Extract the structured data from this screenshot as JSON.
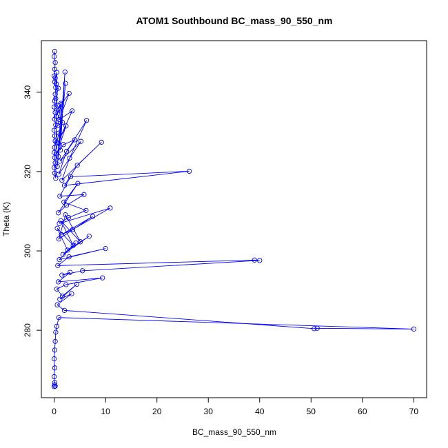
{
  "chart_data": {
    "type": "line",
    "title": "ATOM1 Southbound BC_mass_90_550_nm",
    "xlabel": "BC_mass_90_550_nm",
    "ylabel": "Theta (K)",
    "xlim": [
      -2.5,
      72.5
    ],
    "ylim": [
      263,
      353
    ],
    "xticks": [
      0,
      10,
      20,
      30,
      40,
      50,
      60,
      70
    ],
    "yticks": [
      280,
      300,
      320,
      340
    ],
    "grid": false,
    "legend": "none",
    "marker": "open-circle",
    "color": "#0000ff",
    "series": [
      {
        "x": [
          0.1,
          0.0,
          0.2,
          0.1,
          0.0,
          0.1,
          0.3,
          0.2,
          0.1,
          0.0,
          0.2,
          0.1,
          0.3,
          0.0,
          0.1,
          0.2,
          0.1,
          0.0,
          0.1,
          0.2,
          0.0,
          0.1,
          0.3,
          0.5,
          0.2,
          0.4,
          0.8,
          0.3,
          0.6,
          1.0,
          0.4,
          1.3,
          0.7,
          1.6,
          0.9,
          0.5,
          1.2,
          2.1,
          0.8,
          2.2,
          0.6,
          1.4,
          2.9,
          1.0,
          3.5,
          0.7,
          2.3,
          0.5,
          1.8,
          4.0,
          1.1,
          5.2,
          0.9,
          2.4,
          6.3,
          3.0,
          1.5,
          9.2,
          4.5,
          2.0,
          26.3,
          3.2,
          1.1,
          5.8,
          2.4,
          0.8,
          4.6,
          1.9,
          6.2,
          2.8,
          1.0,
          10.9,
          3.6,
          1.4,
          7.5,
          0.9,
          2.2,
          5.1,
          1.3,
          3.7,
          0.6,
          2.6,
          6.8,
          1.7,
          4.2,
          1.0,
          10.0,
          2.9,
          0.7,
          39.0,
          40.0,
          5.5,
          1.5,
          3.1,
          0.8,
          9.4,
          2.3,
          0.5,
          1.6,
          4.4,
          1.1,
          3.4,
          0.6,
          2.0,
          50.6,
          51.2,
          70.0,
          0.9,
          0.5,
          0.3,
          0.2,
          0.1,
          0.0,
          0.1,
          0.0,
          0.1,
          0.2,
          0.1,
          0.0
        ],
        "y": [
          350.3,
          349.0,
          347.5,
          345.8,
          344.1,
          342.6,
          341.2,
          339.5,
          337.8,
          336.3,
          334.9,
          333.2,
          331.8,
          330.4,
          329.0,
          327.7,
          326.1,
          324.8,
          323.5,
          322.2,
          321.0,
          319.6,
          318.3,
          345.0,
          343.6,
          342.1,
          341.0,
          338.4,
          336.7,
          335.5,
          333.9,
          337.2,
          331.6,
          332.4,
          329.7,
          327.3,
          325.4,
          345.1,
          323.8,
          342.2,
          321.3,
          336.9,
          339.7,
          333.1,
          335.3,
          327.2,
          331.5,
          324.5,
          326.8,
          328.0,
          322.6,
          327.6,
          319.3,
          325.1,
          332.9,
          323.4,
          317.8,
          327.4,
          321.6,
          316.5,
          320.1,
          318.7,
          313.8,
          314.2,
          311.5,
          309.6,
          317.0,
          312.3,
          310.2,
          308.4,
          306.9,
          310.8,
          305.4,
          304.1,
          308.7,
          303.0,
          309.1,
          302.3,
          307.6,
          301.4,
          305.7,
          300.2,
          303.7,
          299.1,
          302.0,
          297.8,
          300.6,
          298.5,
          296.3,
          297.7,
          297.6,
          295.0,
          293.9,
          294.6,
          292.2,
          293.2,
          291.5,
          290.4,
          288.6,
          291.6,
          287.8,
          289.2,
          286.4,
          285.0,
          280.4,
          280.5,
          280.3,
          283.2,
          281.0,
          279.5,
          277.2,
          275.0,
          272.8,
          270.5,
          268.3,
          266.8,
          265.9,
          266.2,
          265.8
        ]
      }
    ]
  }
}
